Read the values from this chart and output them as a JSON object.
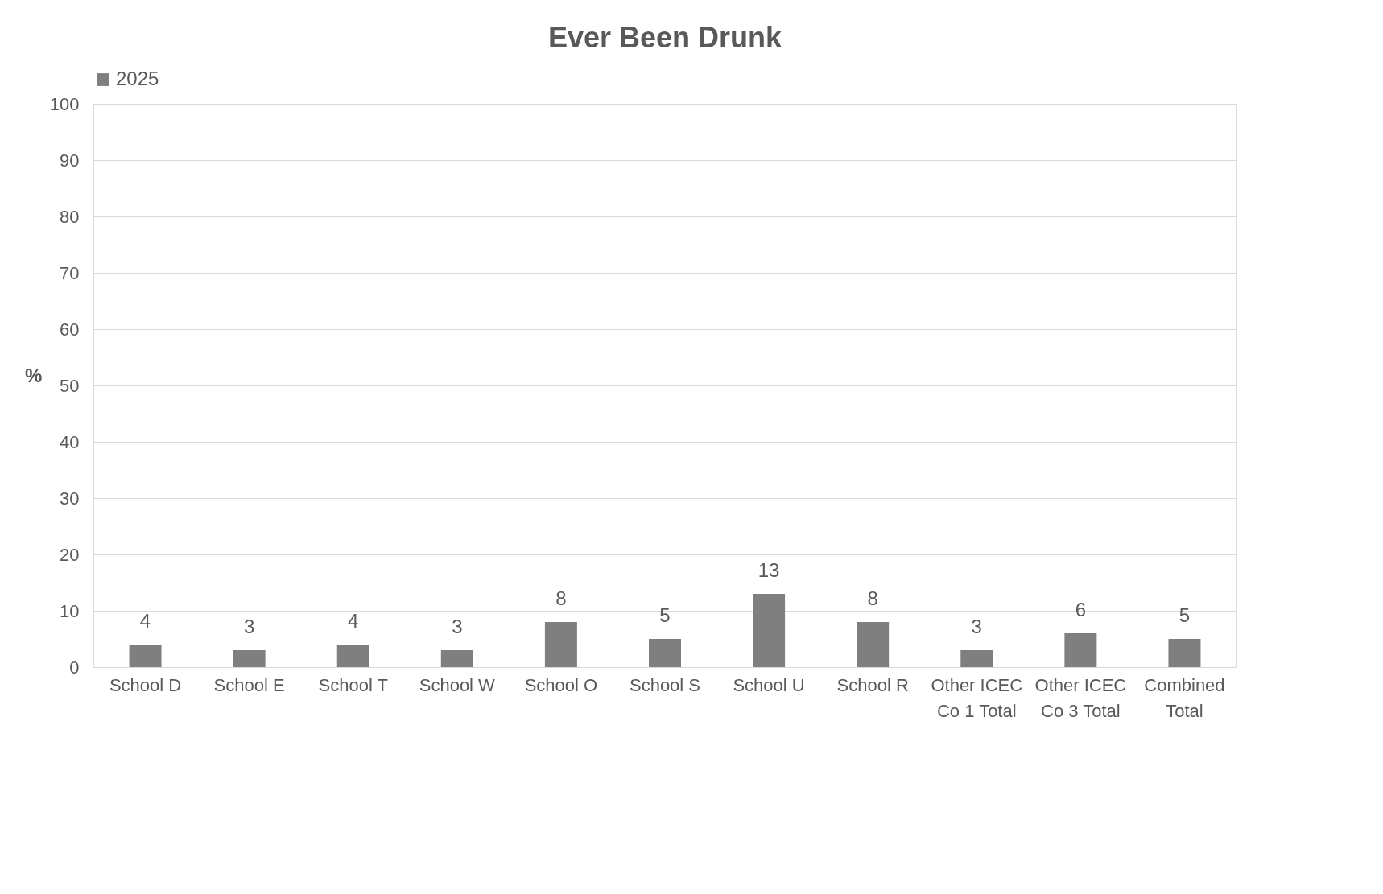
{
  "chart_data": {
    "type": "bar",
    "title": "Ever Been Drunk",
    "ylabel": "%",
    "categories": [
      "School D",
      "School E",
      "School T",
      "School W",
      "School O",
      "School S",
      "School U",
      "School R",
      "Other ICEC Co 1 Total",
      "Other ICEC Co 3 Total",
      "Combined Total"
    ],
    "series": [
      {
        "name": "2025",
        "color": "#7f7f7f",
        "values": [
          4,
          3,
          4,
          3,
          8,
          5,
          13,
          8,
          3,
          6,
          5
        ]
      }
    ],
    "ylim": [
      0,
      100
    ],
    "yticks": [
      0,
      10,
      20,
      30,
      40,
      50,
      60,
      70,
      80,
      90,
      100
    ],
    "grid": "y",
    "legend": "top",
    "data_labels": true
  }
}
